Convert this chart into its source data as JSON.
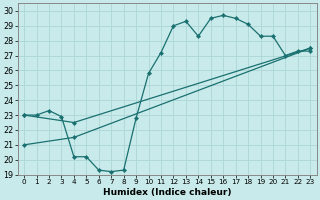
{
  "xlabel": "Humidex (Indice chaleur)",
  "bg_color": "#c8eaea",
  "line_color": "#1a7070",
  "grid_color": "#b0d8d8",
  "xlim": [
    -0.5,
    23.5
  ],
  "ylim": [
    19,
    30.5
  ],
  "xticks": [
    0,
    1,
    2,
    3,
    4,
    5,
    6,
    7,
    8,
    9,
    10,
    11,
    12,
    13,
    14,
    15,
    16,
    17,
    18,
    19,
    20,
    21,
    22,
    23
  ],
  "yticks": [
    19,
    20,
    21,
    22,
    23,
    24,
    25,
    26,
    27,
    28,
    29,
    30
  ],
  "line1_x": [
    0,
    1,
    2,
    3,
    4,
    5,
    6,
    7,
    8,
    9,
    10,
    11,
    12,
    13,
    14,
    15,
    16,
    17,
    18,
    19,
    20,
    21,
    22,
    23
  ],
  "line1_y": [
    23.0,
    23.0,
    23.3,
    22.9,
    20.2,
    20.2,
    19.3,
    19.2,
    19.3,
    22.8,
    25.8,
    27.2,
    29.0,
    29.3,
    28.3,
    29.5,
    29.7,
    29.5,
    29.1,
    28.3,
    28.3,
    27.0,
    27.3,
    27.3
  ],
  "line2_x": [
    0,
    4,
    23
  ],
  "line2_y": [
    23.0,
    22.5,
    27.5
  ],
  "line3_x": [
    0,
    4,
    23
  ],
  "line3_y": [
    21.0,
    21.5,
    27.5
  ]
}
